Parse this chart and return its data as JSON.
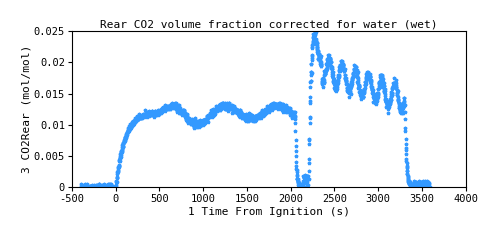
{
  "title": "Rear CO2 volume fraction corrected for water (wet)",
  "xlabel": "1 Time From Ignition (s)",
  "ylabel": "3 CO2Rear (mol/mol)",
  "xlim": [
    -500,
    4000
  ],
  "ylim": [
    0,
    0.025
  ],
  "xticks": [
    -500,
    0,
    500,
    1000,
    1500,
    2000,
    2500,
    3000,
    3500,
    4000
  ],
  "ytick_values": [
    0,
    0.005,
    0.01,
    0.015,
    0.02,
    0.025
  ],
  "ytick_labels": [
    "0",
    "0.005",
    "0.01",
    "0.015",
    "0.02",
    "0.025"
  ],
  "marker": "*",
  "color": "#3399ff",
  "markersize": 2.5,
  "linewidth": 0,
  "title_fontsize": 8,
  "label_fontsize": 8,
  "tick_fontsize": 7.5,
  "bg_color": "#ffffff"
}
